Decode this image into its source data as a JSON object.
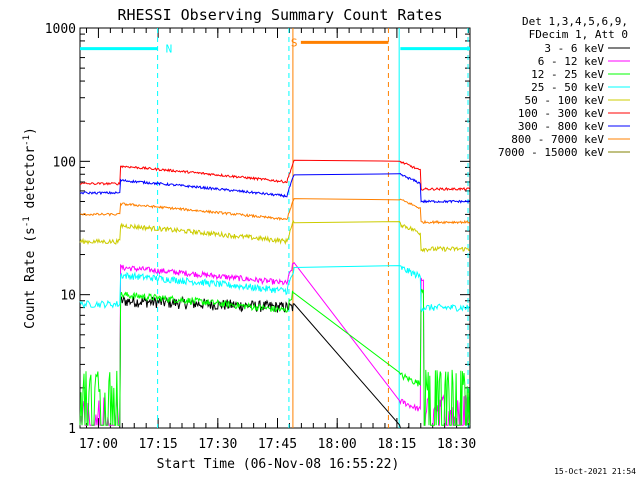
{
  "chart_data": {
    "type": "line",
    "title": "RHESSI Observing Summary Count Rates",
    "xlabel": "Start Time (06-Nov-08 16:55:22)",
    "ylabel_parts": [
      "Count Rate (s",
      "-1",
      " detector",
      "-1",
      ")"
    ],
    "y_scale": "log",
    "ylim": [
      1,
      1000
    ],
    "y_ticks": [
      {
        "value": 1,
        "label": "1"
      },
      {
        "value": 10,
        "label": "10"
      },
      {
        "value": 100,
        "label": "100"
      },
      {
        "value": 1000,
        "label": "1000"
      }
    ],
    "xlim_min": [
      0,
      98
    ],
    "x_ticks": [
      {
        "value": 4.63,
        "label": "17:00"
      },
      {
        "value": 19.63,
        "label": "17:15"
      },
      {
        "value": 34.63,
        "label": "17:30"
      },
      {
        "value": 49.63,
        "label": "17:45"
      },
      {
        "value": 64.63,
        "label": "18:00"
      },
      {
        "value": 79.63,
        "label": "18:15"
      },
      {
        "value": 94.63,
        "label": "18:30"
      }
    ],
    "legend_header": [
      "Det 1,3,4,5,6,9,",
      "FDecim 1, Att 0"
    ],
    "legend_position": "outside-right",
    "series": [
      {
        "name": "3 - 6 keV",
        "color": "#000000",
        "pre": 0,
        "slow": 10,
        "post": 0,
        "noise": 0.1,
        "gap_fill": 0,
        "eclipse_end": 1
      },
      {
        "name": "6 - 12 keV",
        "color": "#ff00ff",
        "pre": 1.6,
        "slow": 16,
        "post": 13,
        "noise": 0.05,
        "gap_fill": 1.5,
        "eclipse_end": 1.6
      },
      {
        "name": "12 - 25 keV",
        "color": "#00ff00",
        "pre": 2.5,
        "slow": 10,
        "post": 11,
        "noise": 0.06,
        "gap_fill": 2.3,
        "eclipse_end": 2.5
      },
      {
        "name": "25 - 50 keV",
        "color": "#00ffff",
        "pre": 8.5,
        "slow": 14,
        "post": 8,
        "noise": 0.06,
        "gap_fill": 0,
        "eclipse_end": 16
      },
      {
        "name": "50 - 100 keV",
        "color": "#cccc00",
        "pre": 25,
        "slow": 33,
        "post": 22,
        "noise": 0.04,
        "gap_fill": 0,
        "eclipse_end": 34
      },
      {
        "name": "100 - 300 keV",
        "color": "#ff0000",
        "pre": 68,
        "slow": 92,
        "post": 62,
        "noise": 0.02,
        "gap_fill": 0,
        "eclipse_end": 100
      },
      {
        "name": "300 - 800 keV",
        "color": "#0000ff",
        "pre": 58,
        "slow": 72,
        "post": 50,
        "noise": 0.02,
        "gap_fill": 0,
        "eclipse_end": 80
      },
      {
        "name": "800 - 7000 keV",
        "color": "#ff8000",
        "pre": 40,
        "slow": 48,
        "post": 35,
        "noise": 0.02,
        "gap_fill": 0,
        "eclipse_end": 52
      },
      {
        "name": "7000 - 15000 keV",
        "color": "#808000",
        "pre": 0,
        "slow": 0,
        "post": 0,
        "noise": 0,
        "gap_fill": 0,
        "eclipse_end": 0
      }
    ],
    "annotations": [
      {
        "label": "N",
        "x_start_min": 0,
        "x_end_min": 19.5,
        "color": "#00ffff",
        "level": 700
      },
      {
        "label": "S",
        "x_start_min": 55.5,
        "x_end_min": 77.5,
        "color": "#ff8000",
        "level": 780
      },
      {
        "label": "",
        "x_start_min": 80.5,
        "x_end_min": 98,
        "color": "#00ffff",
        "level": 700
      }
    ],
    "markers": [
      {
        "type": "dashed",
        "x_min": 19.5,
        "color": "#00ffff"
      },
      {
        "type": "dashed",
        "x_min": 52.5,
        "color": "#00ffff"
      },
      {
        "type": "solid",
        "x_min": 53.5,
        "color": "#ff8000"
      },
      {
        "type": "solid",
        "x_min": 80.2,
        "color": "#00ffff"
      },
      {
        "type": "dashed",
        "x_min": 77.5,
        "color": "#ff8000"
      },
      {
        "type": "dashed",
        "x_min": 97.5,
        "color": "#00ffff"
      }
    ],
    "data_gap_min": [
      54,
      80.3
    ]
  },
  "footer": {
    "timestamp": "15-Oct-2021 21:54"
  }
}
